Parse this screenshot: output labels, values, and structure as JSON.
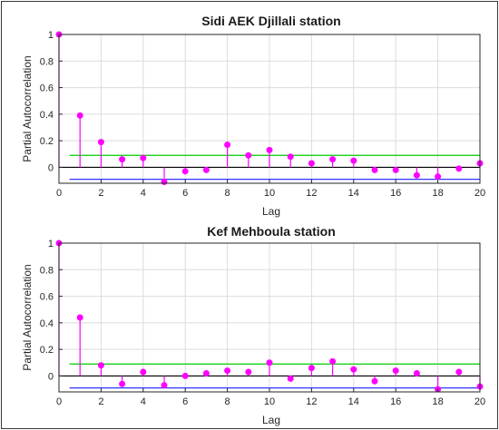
{
  "chart_data": [
    {
      "type": "stem",
      "title": "Sidi AEK Djillali station",
      "xlabel": "Lag",
      "ylabel": "Partial Autocorrelation",
      "xlim": [
        0,
        20
      ],
      "ylim": [
        -0.12,
        1.0
      ],
      "xticks": [
        0,
        2,
        4,
        6,
        8,
        10,
        12,
        14,
        16,
        18,
        20
      ],
      "yticks": [
        0,
        0.2,
        0.4,
        0.6,
        0.8,
        1
      ],
      "grid": true,
      "lags": [
        0,
        1,
        2,
        3,
        4,
        5,
        6,
        7,
        8,
        9,
        10,
        11,
        12,
        13,
        14,
        15,
        16,
        17,
        18,
        19,
        20
      ],
      "values": [
        1.0,
        0.39,
        0.19,
        0.06,
        0.07,
        -0.11,
        -0.03,
        -0.02,
        0.17,
        0.09,
        0.13,
        0.08,
        0.03,
        0.06,
        0.05,
        -0.02,
        -0.02,
        -0.06,
        -0.07,
        -0.01,
        0.03
      ],
      "upper_bound": 0.09,
      "lower_bound": -0.09,
      "colors": {
        "stem": "#ff00ff",
        "upper_bound": "#00cc00",
        "lower_bound": "#3333ff",
        "zero_line": "#000000"
      }
    },
    {
      "type": "stem",
      "title": "Kef Mehboula station",
      "xlabel": "Lag",
      "ylabel": "Partial Autocorrelation",
      "xlim": [
        0,
        20
      ],
      "ylim": [
        -0.12,
        1.0
      ],
      "xticks": [
        0,
        2,
        4,
        6,
        8,
        10,
        12,
        14,
        16,
        18,
        20
      ],
      "yticks": [
        0,
        0.2,
        0.4,
        0.6,
        0.8,
        1
      ],
      "grid": true,
      "lags": [
        0,
        1,
        2,
        3,
        4,
        5,
        6,
        7,
        8,
        9,
        10,
        11,
        12,
        13,
        14,
        15,
        16,
        17,
        18,
        19,
        20
      ],
      "values": [
        1.0,
        0.44,
        0.08,
        -0.06,
        0.03,
        -0.07,
        0.0,
        0.02,
        0.04,
        0.03,
        0.1,
        -0.02,
        0.06,
        0.11,
        0.05,
        -0.04,
        0.04,
        0.02,
        -0.1,
        0.03,
        -0.08
      ],
      "upper_bound": 0.09,
      "lower_bound": -0.09,
      "colors": {
        "stem": "#ff00ff",
        "upper_bound": "#00cc00",
        "lower_bound": "#3333ff",
        "zero_line": "#000000"
      }
    }
  ]
}
